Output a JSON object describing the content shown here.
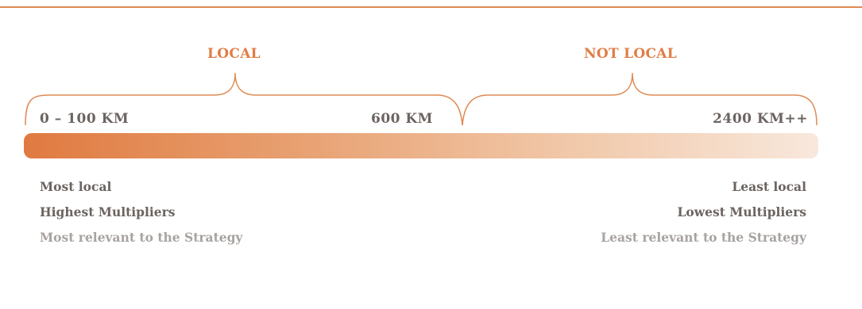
{
  "colors": {
    "accent": "#de8a52",
    "label_orange": "#e07d45",
    "text_dark": "#6b6460",
    "text_light": "#a8a3a0",
    "gradient_start": "#e07a40",
    "gradient_end": "#f8e8dc"
  },
  "groups": {
    "local": "LOCAL",
    "not_local": "NOT LOCAL"
  },
  "distances": {
    "left": "0 – 100 km",
    "middle": "600 km",
    "right": "2400 km++"
  },
  "left_description": {
    "line1": "Most local",
    "line2": "Highest Multipliers",
    "line3": "Most relevant to the Strategy"
  },
  "right_description": {
    "line1": "Least local",
    "line2": "Lowest Multipliers",
    "line3": "Least relevant to the Strategy"
  }
}
